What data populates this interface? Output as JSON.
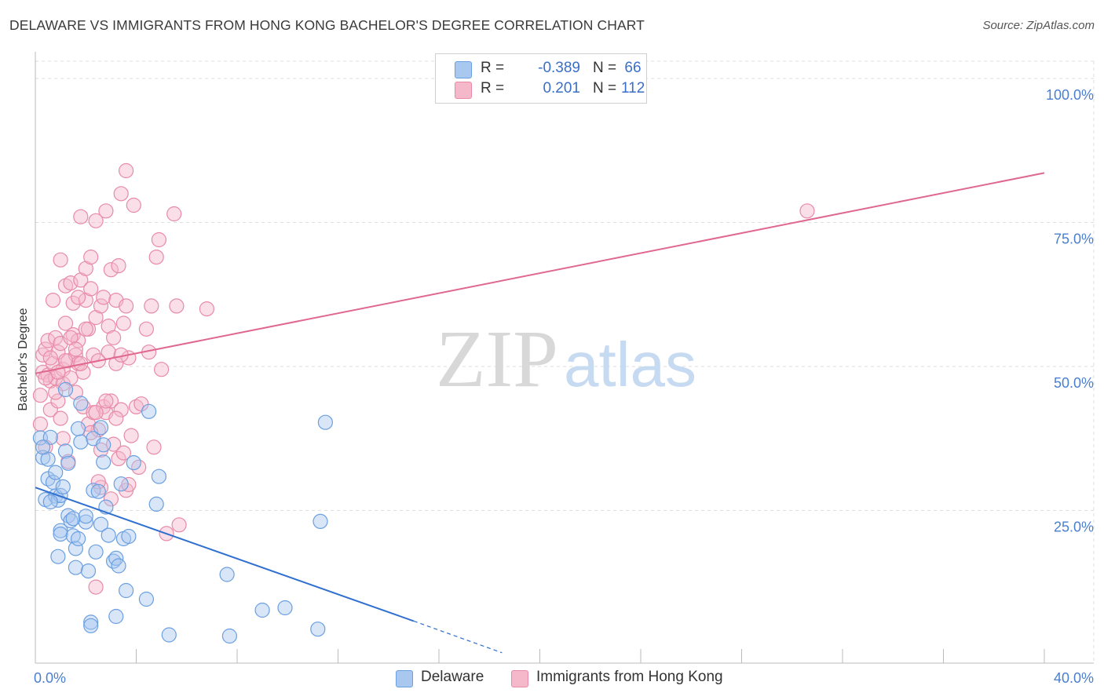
{
  "title": "DELAWARE VS IMMIGRANTS FROM HONG KONG BACHELOR'S DEGREE CORRELATION CHART",
  "source": "Source: ZipAtlas.com",
  "watermark": {
    "zip": "ZIP",
    "atlas": "atlas"
  },
  "colors": {
    "blue": "#6a9fe0",
    "blue_fill": "#a9c8f0",
    "blue_line": "#2f6fcf",
    "pink": "#e88aa8",
    "pink_fill": "#f5b8cb",
    "pink_line": "#e0688f",
    "tick_text": "#4a7fd0",
    "grid": "#dddddd"
  },
  "legend": {
    "rows": [
      {
        "r_label": "R =",
        "r_value": "-0.389",
        "n_label": "N =",
        "n_value": "66"
      },
      {
        "r_label": "R =",
        "r_value": "0.201",
        "n_label": "N =",
        "n_value": "112"
      }
    ]
  },
  "bottom_legend": {
    "delaware": "Delaware",
    "hongkong": "Immigrants from Hong Kong"
  },
  "chart_data": {
    "type": "scatter",
    "title": "DELAWARE VS IMMIGRANTS FROM HONG KONG BACHELOR'S DEGREE CORRELATION CHART",
    "xlabel": "",
    "ylabel": "Bachelor's Degree",
    "xlim": [
      0,
      40
    ],
    "ylim": [
      -1.5,
      103
    ],
    "x_tick_labels": [
      "0.0%",
      "40.0%"
    ],
    "y_ticks": [
      25,
      50,
      75,
      100
    ],
    "y_tick_labels": [
      "25.0%",
      "50.0%",
      "75.0%",
      "100.0%"
    ],
    "grid": "horizontal dashed",
    "series": [
      {
        "name": "Delaware",
        "r": -0.389,
        "n": 66,
        "trend": {
          "x0": 0,
          "y0": 29.0,
          "x1": 15.0,
          "y1": 5.8,
          "dash_to_x": 18.5,
          "dash_to_y": 0.3
        },
        "points": [
          [
            0.2,
            37.6
          ],
          [
            0.3,
            34.2
          ],
          [
            0.5,
            33.9
          ],
          [
            0.6,
            37.7
          ],
          [
            0.4,
            26.9
          ],
          [
            0.5,
            30.5
          ],
          [
            0.7,
            29.9
          ],
          [
            0.8,
            27.5
          ],
          [
            0.8,
            31.6
          ],
          [
            0.9,
            26.8
          ],
          [
            1.0,
            27.6
          ],
          [
            0.9,
            17.0
          ],
          [
            1.0,
            21.5
          ],
          [
            1.0,
            20.9
          ],
          [
            1.1,
            29.1
          ],
          [
            1.2,
            46.0
          ],
          [
            1.2,
            35.3
          ],
          [
            1.3,
            24.1
          ],
          [
            1.3,
            33.2
          ],
          [
            1.4,
            23.2
          ],
          [
            1.5,
            23.6
          ],
          [
            1.5,
            20.6
          ],
          [
            1.6,
            15.1
          ],
          [
            1.6,
            18.4
          ],
          [
            1.7,
            39.2
          ],
          [
            1.7,
            20.1
          ],
          [
            1.8,
            43.6
          ],
          [
            1.8,
            36.9
          ],
          [
            2.0,
            23.0
          ],
          [
            2.1,
            14.5
          ],
          [
            2.2,
            5.6
          ],
          [
            2.2,
            5.0
          ],
          [
            2.3,
            37.5
          ],
          [
            2.3,
            28.5
          ],
          [
            2.4,
            17.8
          ],
          [
            2.5,
            28.3
          ],
          [
            2.6,
            39.4
          ],
          [
            2.6,
            22.6
          ],
          [
            2.7,
            36.4
          ],
          [
            2.7,
            33.4
          ],
          [
            2.8,
            25.6
          ],
          [
            2.9,
            20.7
          ],
          [
            3.1,
            16.2
          ],
          [
            3.2,
            16.7
          ],
          [
            3.2,
            6.6
          ],
          [
            3.3,
            15.4
          ],
          [
            3.4,
            29.6
          ],
          [
            3.5,
            20.1
          ],
          [
            3.6,
            11.1
          ],
          [
            3.7,
            20.5
          ],
          [
            3.9,
            33.3
          ],
          [
            4.4,
            9.6
          ],
          [
            4.5,
            42.2
          ],
          [
            4.8,
            26.1
          ],
          [
            4.9,
            30.9
          ],
          [
            5.3,
            3.4
          ],
          [
            7.6,
            13.9
          ],
          [
            7.7,
            3.2
          ],
          [
            9.0,
            7.7
          ],
          [
            9.9,
            8.1
          ],
          [
            11.2,
            4.4
          ],
          [
            11.3,
            23.1
          ],
          [
            11.5,
            40.3
          ],
          [
            0.3,
            36.0
          ],
          [
            0.6,
            26.5
          ],
          [
            2.0,
            24.0
          ]
        ]
      },
      {
        "name": "Immigrants from Hong Kong",
        "r": 0.201,
        "n": 112,
        "trend": {
          "x0": 0,
          "y0": 48.8,
          "x1": 40.0,
          "y1": 83.6
        },
        "points": [
          [
            0.2,
            40.0
          ],
          [
            0.2,
            45.0
          ],
          [
            0.3,
            52.0
          ],
          [
            0.3,
            49.0
          ],
          [
            0.4,
            53.0
          ],
          [
            0.4,
            36.0
          ],
          [
            0.5,
            48.5
          ],
          [
            0.5,
            54.5
          ],
          [
            0.6,
            47.5
          ],
          [
            0.6,
            42.5
          ],
          [
            0.7,
            61.5
          ],
          [
            0.7,
            50.5
          ],
          [
            0.8,
            48.0
          ],
          [
            0.8,
            55.0
          ],
          [
            0.9,
            52.5
          ],
          [
            0.9,
            44.0
          ],
          [
            1.0,
            54.0
          ],
          [
            1.0,
            68.5
          ],
          [
            1.1,
            47.0
          ],
          [
            1.1,
            49.5
          ],
          [
            1.2,
            64.0
          ],
          [
            1.2,
            57.5
          ],
          [
            1.3,
            51.0
          ],
          [
            1.3,
            33.5
          ],
          [
            1.4,
            64.5
          ],
          [
            1.4,
            48.0
          ],
          [
            1.5,
            55.5
          ],
          [
            1.5,
            61.0
          ],
          [
            1.6,
            45.5
          ],
          [
            1.6,
            52.0
          ],
          [
            1.7,
            50.5
          ],
          [
            1.7,
            54.5
          ],
          [
            1.8,
            65.0
          ],
          [
            1.8,
            76.0
          ],
          [
            1.9,
            43.0
          ],
          [
            1.9,
            49.0
          ],
          [
            2.0,
            67.0
          ],
          [
            2.0,
            61.5
          ],
          [
            2.1,
            56.5
          ],
          [
            2.1,
            40.0
          ],
          [
            2.2,
            69.0
          ],
          [
            2.2,
            63.5
          ],
          [
            2.3,
            52.0
          ],
          [
            2.3,
            42.0
          ],
          [
            2.4,
            75.3
          ],
          [
            2.4,
            58.5
          ],
          [
            2.5,
            51.0
          ],
          [
            2.5,
            39.0
          ],
          [
            2.6,
            60.5
          ],
          [
            2.6,
            35.5
          ],
          [
            2.7,
            43.0
          ],
          [
            2.7,
            62.0
          ],
          [
            2.8,
            77.0
          ],
          [
            2.8,
            42.0
          ],
          [
            2.9,
            57.0
          ],
          [
            2.9,
            52.5
          ],
          [
            3.0,
            66.8
          ],
          [
            3.0,
            44.0
          ],
          [
            3.1,
            55.0
          ],
          [
            3.1,
            36.5
          ],
          [
            3.2,
            61.5
          ],
          [
            3.2,
            50.5
          ],
          [
            3.3,
            67.5
          ],
          [
            3.3,
            34.0
          ],
          [
            3.4,
            80.0
          ],
          [
            3.4,
            42.5
          ],
          [
            3.5,
            57.5
          ],
          [
            3.5,
            35.0
          ],
          [
            3.6,
            84.0
          ],
          [
            3.6,
            60.5
          ],
          [
            3.7,
            51.5
          ],
          [
            3.8,
            38.0
          ],
          [
            3.9,
            78.0
          ],
          [
            4.0,
            43.0
          ],
          [
            4.1,
            32.5
          ],
          [
            4.2,
            43.5
          ],
          [
            4.4,
            56.5
          ],
          [
            4.5,
            52.5
          ],
          [
            4.6,
            60.5
          ],
          [
            4.7,
            36.0
          ],
          [
            4.8,
            69.0
          ],
          [
            4.9,
            72.0
          ],
          [
            5.0,
            49.5
          ],
          [
            5.2,
            21.0
          ],
          [
            5.5,
            76.5
          ],
          [
            5.6,
            60.5
          ],
          [
            5.7,
            22.5
          ],
          [
            6.8,
            60.0
          ],
          [
            30.6,
            77.0
          ],
          [
            0.4,
            48.0
          ],
          [
            0.6,
            51.5
          ],
          [
            0.8,
            45.5
          ],
          [
            1.0,
            41.0
          ],
          [
            1.2,
            51.0
          ],
          [
            1.4,
            55.0
          ],
          [
            1.6,
            53.0
          ],
          [
            1.8,
            50.5
          ],
          [
            2.0,
            56.5
          ],
          [
            2.2,
            38.5
          ],
          [
            2.4,
            42.0
          ],
          [
            2.6,
            29.0
          ],
          [
            2.8,
            44.0
          ],
          [
            3.0,
            27.0
          ],
          [
            3.2,
            41.0
          ],
          [
            3.4,
            52.0
          ],
          [
            3.6,
            28.5
          ],
          [
            2.4,
            11.7
          ],
          [
            1.1,
            37.5
          ],
          [
            0.9,
            49.0
          ],
          [
            1.7,
            62.0
          ],
          [
            2.5,
            30.0
          ],
          [
            3.7,
            29.5
          ]
        ]
      }
    ]
  }
}
